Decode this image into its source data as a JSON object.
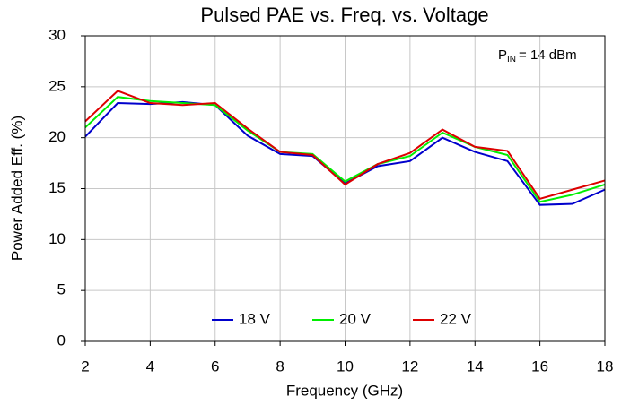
{
  "chart_data": {
    "type": "line",
    "title": "Pulsed PAE vs. Freq. vs. Voltage",
    "x_label": "Frequency (GHz)",
    "y_label": "Power Added Eff. (%)",
    "annotation": {
      "base": "P",
      "sub": "IN",
      "text": "= 14 dBm"
    },
    "x": [
      2,
      3,
      4,
      5,
      6,
      7,
      8,
      9,
      10,
      11,
      12,
      13,
      14,
      15,
      16,
      17,
      18
    ],
    "series": [
      {
        "name": "18 V",
        "color": "#0000cc",
        "values": [
          20.1,
          23.4,
          23.3,
          23.5,
          23.2,
          20.2,
          18.4,
          18.2,
          15.5,
          17.2,
          17.7,
          20.0,
          18.6,
          17.7,
          13.4,
          13.5,
          14.9
        ]
      },
      {
        "name": "20 V",
        "color": "#00ee00",
        "values": [
          21.0,
          24.0,
          23.6,
          23.4,
          23.2,
          20.7,
          18.6,
          18.4,
          15.7,
          17.4,
          18.2,
          20.5,
          19.1,
          18.3,
          13.7,
          14.4,
          15.4
        ]
      },
      {
        "name": "22 V",
        "color": "#dd0000",
        "values": [
          21.6,
          24.6,
          23.4,
          23.2,
          23.4,
          20.9,
          18.6,
          18.3,
          15.4,
          17.4,
          18.5,
          20.8,
          19.1,
          18.7,
          14.0,
          14.9,
          15.8
        ]
      }
    ],
    "xlim": [
      2,
      18
    ],
    "xticks": [
      2,
      4,
      6,
      8,
      10,
      12,
      14,
      16,
      18
    ],
    "ylim": [
      0,
      30
    ],
    "yticks": [
      0,
      5,
      10,
      15,
      20,
      25,
      30
    ],
    "grid": true,
    "legend": "bottom"
  }
}
